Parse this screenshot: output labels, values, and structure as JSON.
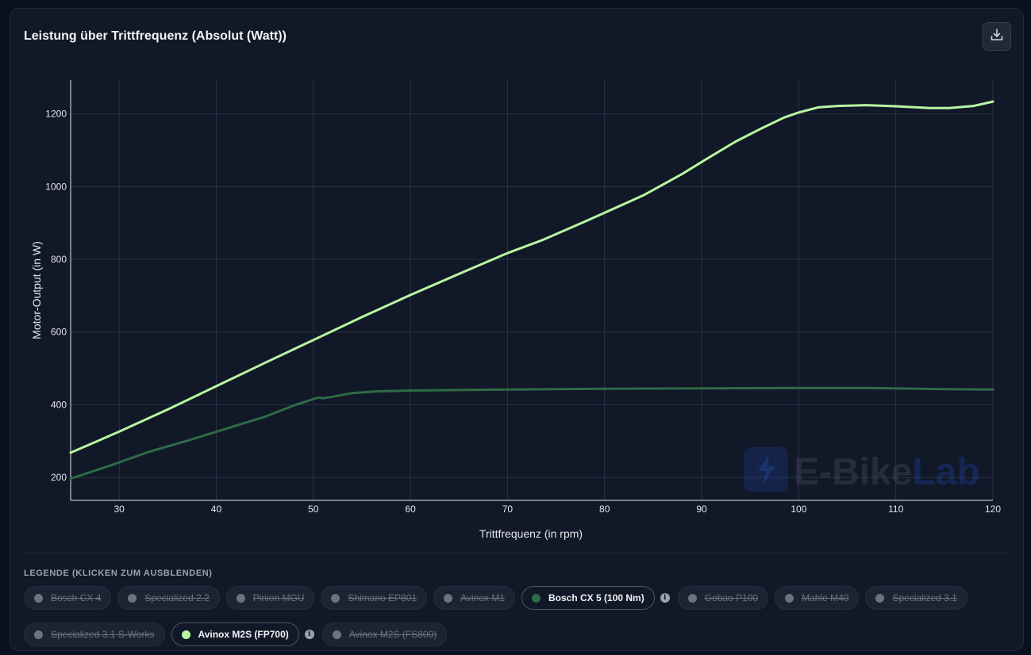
{
  "card": {
    "title": "Leistung über Trittfrequenz (Absolut (Watt))",
    "download_icon": "download-icon"
  },
  "watermark": {
    "text_a": "E-Bike",
    "text_b": "Lab",
    "icon": "lightning-bolt-icon"
  },
  "chart_data": {
    "type": "line",
    "xlabel": "Trittfrequenz (in rpm)",
    "ylabel": "Motor-Output (in W)",
    "xlim": [
      25,
      120
    ],
    "ylim": [
      137,
      1293
    ],
    "xticks": [
      30,
      40,
      50,
      60,
      70,
      80,
      90,
      100,
      110,
      120
    ],
    "yticks": [
      200,
      400,
      600,
      800,
      1000,
      1200
    ],
    "grid": true,
    "series": [
      {
        "name": "Avinox M2S (FP700)",
        "color": "#b9f5a2",
        "points": [
          [
            25,
            268
          ],
          [
            30,
            326
          ],
          [
            35,
            387
          ],
          [
            40,
            451
          ],
          [
            45,
            515
          ],
          [
            50,
            578
          ],
          [
            55,
            641
          ],
          [
            60,
            702
          ],
          [
            65,
            760
          ],
          [
            70,
            817
          ],
          [
            73.5,
            852
          ],
          [
            78,
            904
          ],
          [
            84,
            976
          ],
          [
            88,
            1035
          ],
          [
            91,
            1084
          ],
          [
            93.5,
            1124
          ],
          [
            96,
            1158
          ],
          [
            98.5,
            1190
          ],
          [
            100,
            1204
          ],
          [
            102,
            1218
          ],
          [
            104,
            1222
          ],
          [
            107,
            1224
          ],
          [
            110,
            1221
          ],
          [
            113.5,
            1216
          ],
          [
            115.5,
            1216
          ],
          [
            118,
            1222
          ],
          [
            120,
            1234
          ]
        ]
      },
      {
        "name": "Bosch CX 5 (100 Nm)",
        "color": "#2e6b47",
        "points": [
          [
            25,
            197
          ],
          [
            29,
            232
          ],
          [
            33,
            270
          ],
          [
            37,
            301
          ],
          [
            41,
            334
          ],
          [
            45,
            367
          ],
          [
            48,
            398
          ],
          [
            50.5,
            420
          ],
          [
            51,
            418
          ],
          [
            52,
            422
          ],
          [
            54,
            432
          ],
          [
            56.5,
            437
          ],
          [
            60,
            439
          ],
          [
            70,
            442
          ],
          [
            80,
            444
          ],
          [
            90,
            445
          ],
          [
            100,
            446
          ],
          [
            107,
            446
          ],
          [
            115,
            443
          ],
          [
            120,
            442
          ]
        ]
      }
    ]
  },
  "legend": {
    "title": "LEGENDE (KLICKEN ZUM AUSBLENDEN)",
    "row1": [
      {
        "label": "Bosch CX 4",
        "active": false
      },
      {
        "label": "Specialized 2.2",
        "active": false
      },
      {
        "label": "Pinion MGU",
        "active": false
      },
      {
        "label": "Shimano EP801",
        "active": false
      },
      {
        "label": "Avinox M1",
        "active": false
      },
      {
        "label": "Bosch CX 5 (100 Nm)",
        "active": true,
        "color": "#2e6b47",
        "info": true
      },
      {
        "label": "Gobao P100",
        "active": false
      },
      {
        "label": "Mahle M40",
        "active": false
      },
      {
        "label": "Specialized 3.1",
        "active": false
      }
    ],
    "row2": [
      {
        "label": "Specialized 3.1 S-Works",
        "active": false
      },
      {
        "label": "Avinox M2S (FP700)",
        "active": true,
        "color": "#b9f5a2",
        "info": true
      },
      {
        "label": "Avinox M2S (FS800)",
        "active": false
      }
    ],
    "info_glyph": "i"
  }
}
